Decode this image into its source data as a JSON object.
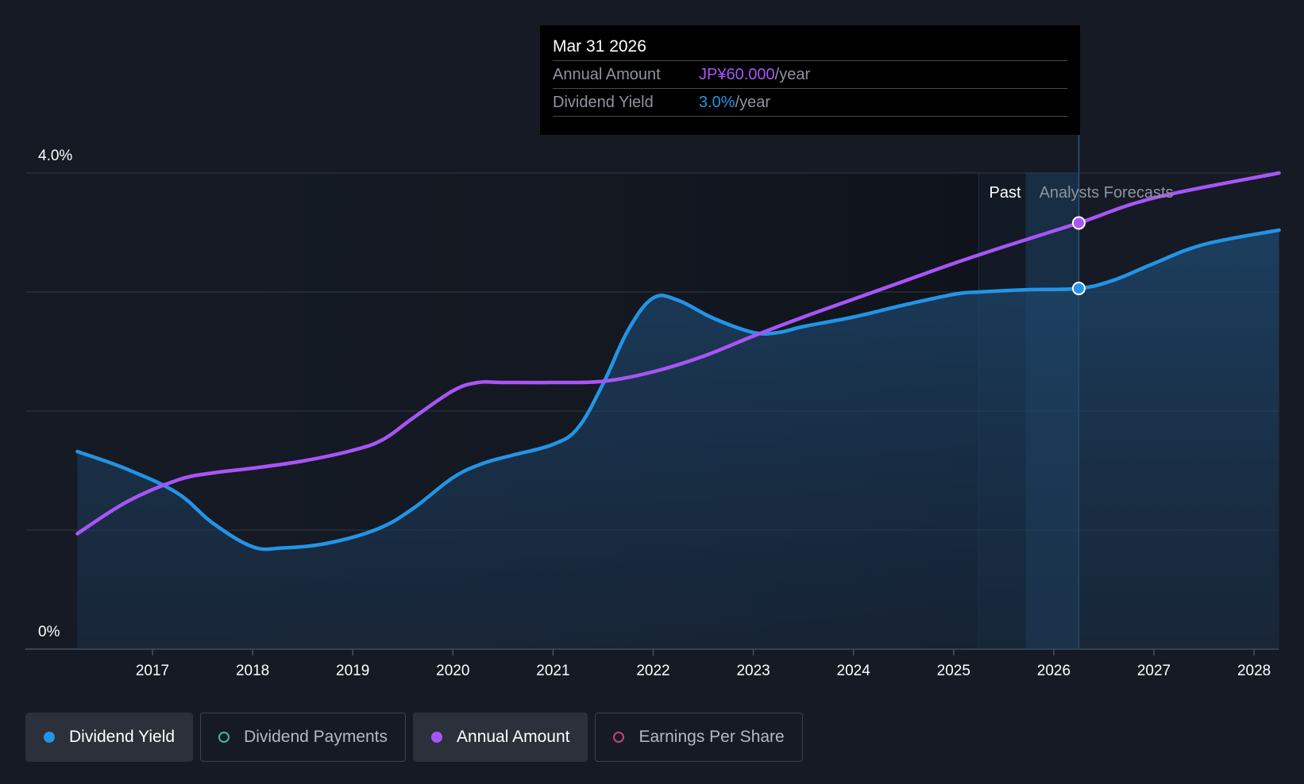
{
  "chart_data": {
    "type": "line",
    "y_tick_labels": [
      "4.0%",
      "0%"
    ],
    "ylim": [
      0,
      4.0
    ],
    "xlim": [
      2016.25,
      2028.25
    ],
    "x_ticks": [
      2017,
      2018,
      2019,
      2020,
      2021,
      2022,
      2023,
      2024,
      2025,
      2026,
      2027,
      2028
    ],
    "x_tick_labels": [
      "2017",
      "2018",
      "2019",
      "2020",
      "2021",
      "2022",
      "2023",
      "2024",
      "2025",
      "2026",
      "2027",
      "2028"
    ],
    "grid": true,
    "past_label": "Past",
    "forecast_label": "Analysts Forecasts",
    "forecast_start": 2025.25,
    "highlight_start": 2025.72,
    "highlight_end": 2026.25,
    "series": [
      {
        "name": "Dividend Yield",
        "color": "#2394e6",
        "area": true,
        "x": [
          2016.25,
          2016.75,
          2017.25,
          2017.6,
          2018.0,
          2018.3,
          2018.75,
          2019.25,
          2019.6,
          2020.0,
          2020.3,
          2020.6,
          2021.0,
          2021.25,
          2021.5,
          2021.75,
          2022.0,
          2022.25,
          2022.6,
          2023.0,
          2023.25,
          2023.5,
          2024.0,
          2024.5,
          2025.0,
          2025.25,
          2025.75,
          2026.25,
          2026.6,
          2027.0,
          2027.5,
          2028.25
        ],
        "values": [
          1.66,
          1.51,
          1.31,
          1.06,
          0.86,
          0.85,
          0.89,
          1.01,
          1.18,
          1.44,
          1.56,
          1.63,
          1.72,
          1.86,
          2.23,
          2.68,
          2.95,
          2.93,
          2.78,
          2.66,
          2.66,
          2.71,
          2.79,
          2.89,
          2.98,
          3.0,
          3.02,
          3.03,
          3.1,
          3.24,
          3.4,
          3.52
        ]
      },
      {
        "name": "Annual Amount",
        "color": "#a855f7",
        "area": false,
        "x": [
          2016.25,
          2016.75,
          2017.25,
          2017.6,
          2018.0,
          2018.5,
          2019.0,
          2019.3,
          2019.6,
          2020.0,
          2020.25,
          2020.5,
          2021.0,
          2021.5,
          2022.0,
          2022.5,
          2023.0,
          2023.5,
          2024.0,
          2024.5,
          2025.0,
          2025.5,
          2026.25,
          2027.0,
          2028.25
        ],
        "values": [
          0.97,
          1.24,
          1.42,
          1.48,
          1.52,
          1.58,
          1.67,
          1.76,
          1.94,
          2.17,
          2.24,
          2.24,
          2.24,
          2.25,
          2.33,
          2.46,
          2.63,
          2.79,
          2.94,
          3.09,
          3.24,
          3.38,
          3.58,
          3.79,
          4.0
        ]
      }
    ],
    "markers": [
      {
        "series": "Annual Amount",
        "x": 2026.25,
        "value": 3.58
      },
      {
        "series": "Dividend Yield",
        "x": 2026.25,
        "value": 3.03
      }
    ]
  },
  "tooltip": {
    "date": "Mar 31 2026",
    "amount_label": "Annual Amount",
    "amount_value": "JP¥60.000",
    "amount_unit": "/year",
    "yield_label": "Dividend Yield",
    "yield_value": "3.0%",
    "yield_unit": "/year"
  },
  "legend": {
    "items": [
      {
        "label": "Dividend Yield",
        "color": "#2394e6",
        "active": true
      },
      {
        "label": "Dividend Payments",
        "color": "#3fb8a7",
        "active": false
      },
      {
        "label": "Annual Amount",
        "color": "#a855f7",
        "active": true
      },
      {
        "label": "Earnings Per Share",
        "color": "#c2457e",
        "active": false
      }
    ]
  }
}
